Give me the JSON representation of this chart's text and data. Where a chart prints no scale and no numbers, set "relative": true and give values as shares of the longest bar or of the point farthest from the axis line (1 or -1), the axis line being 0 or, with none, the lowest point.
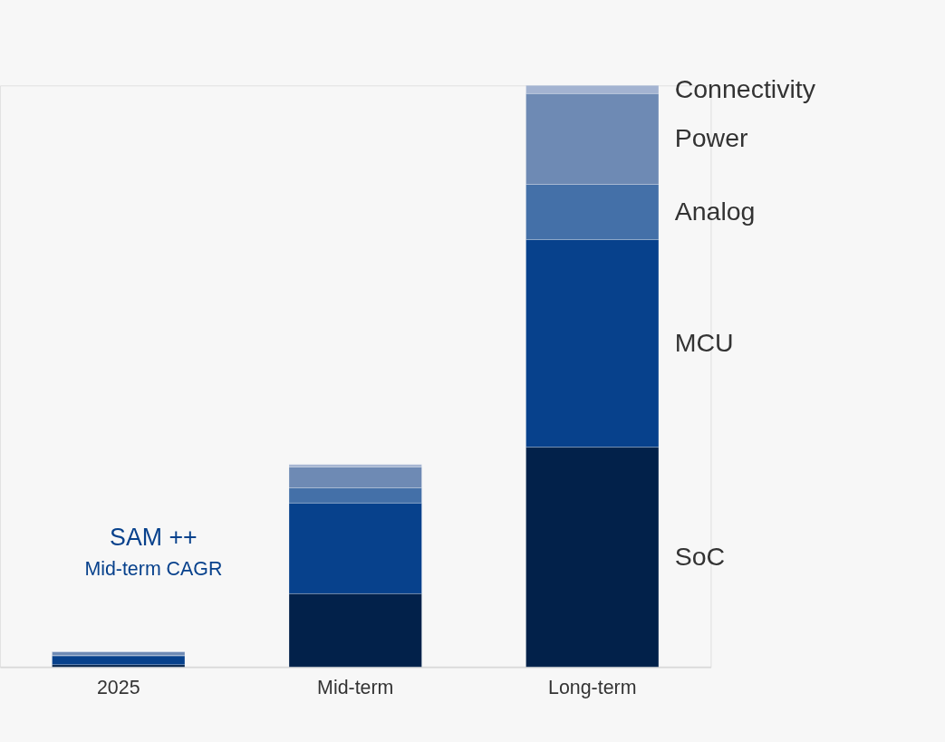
{
  "chart_data": {
    "type": "bar",
    "stacked": true,
    "relative": true,
    "categories": [
      "2025",
      "Mid-term",
      "Long-term"
    ],
    "series": [
      {
        "name": "SoC",
        "color": "#02214a",
        "values": [
          0.004,
          0.126,
          0.378
        ]
      },
      {
        "name": "MCU",
        "color": "#07418c",
        "values": [
          0.015,
          0.156,
          0.357
        ]
      },
      {
        "name": "Analog",
        "color": "#4470a8",
        "values": [
          0.001,
          0.026,
          0.095
        ]
      },
      {
        "name": "Power",
        "color": "#6e8ab4",
        "values": [
          0.006,
          0.036,
          0.156
        ]
      },
      {
        "name": "Connectivity",
        "color": "#a3b3d1",
        "values": [
          0.001,
          0.004,
          0.014
        ]
      }
    ],
    "annotations": [
      "SAM ++",
      "Mid-term CAGR"
    ]
  }
}
